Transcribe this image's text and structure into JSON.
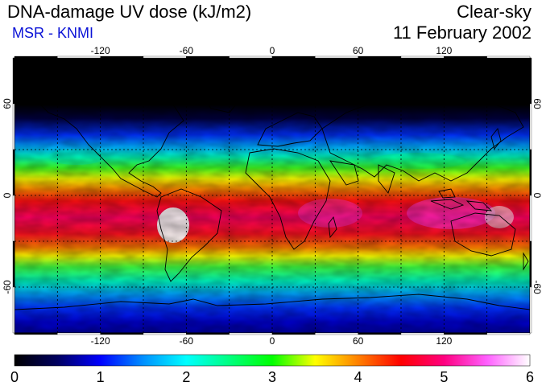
{
  "header": {
    "title": "DNA-damage UV dose (kJ/m2)",
    "source": "MSR - KNMI",
    "condition": "Clear-sky",
    "date": "11 February 2002",
    "source_color": "#0a12d6"
  },
  "map": {
    "lon_range": [
      -180,
      180
    ],
    "lat_range": [
      -90,
      90
    ],
    "lon_ticks": [
      "-120",
      "-60",
      "0",
      "60",
      "120"
    ],
    "lat_ticks_left": [
      "60",
      "0",
      "-60"
    ],
    "lat_ticks_right": [
      "60",
      "0",
      "-60"
    ],
    "gridlines_lon": [
      -150,
      -120,
      -90,
      -60,
      -30,
      0,
      30,
      60,
      90,
      120,
      150
    ],
    "gridlines_lat": [
      -60,
      -30,
      0,
      30,
      60
    ],
    "grid": "dotted",
    "projection": "equirectangular"
  },
  "colorbar": {
    "min": 0,
    "max": 6,
    "tick_labels": [
      "0",
      "1",
      "2",
      "3",
      "4",
      "5",
      "6"
    ],
    "stops": [
      {
        "value": 0.0,
        "color": "#000000"
      },
      {
        "value": 0.5,
        "color": "#000060"
      },
      {
        "value": 1.0,
        "color": "#0000ff"
      },
      {
        "value": 1.5,
        "color": "#0090ff"
      },
      {
        "value": 2.0,
        "color": "#00ffff"
      },
      {
        "value": 2.5,
        "color": "#00ff80"
      },
      {
        "value": 3.0,
        "color": "#00ff00"
      },
      {
        "value": 3.5,
        "color": "#ffff00"
      },
      {
        "value": 4.0,
        "color": "#ff8000"
      },
      {
        "value": 4.5,
        "color": "#ff0000"
      },
      {
        "value": 5.0,
        "color": "#ff0080"
      },
      {
        "value": 5.5,
        "color": "#ff60ff"
      },
      {
        "value": 6.0,
        "color": "#ffffff"
      }
    ]
  }
}
